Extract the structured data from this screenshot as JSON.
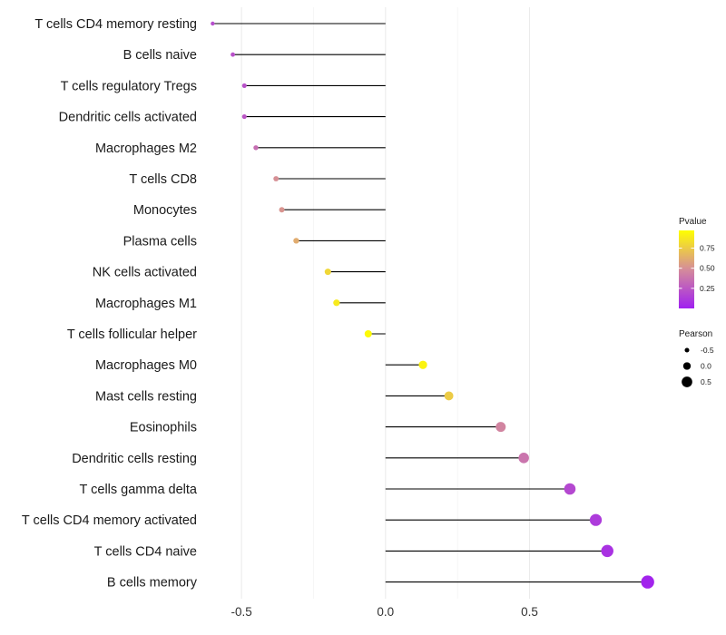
{
  "chart_data": {
    "type": "lollipop",
    "title": "",
    "xlabel": "",
    "ylabel": "",
    "xlim": [
      -0.62,
      0.93
    ],
    "x_ticks": [
      -0.5,
      0.0,
      0.5
    ],
    "x_tick_labels": [
      "-0.5",
      "0.0",
      "0.5"
    ],
    "grid": true,
    "categories": [
      "T cells CD4 memory resting",
      "B cells naive",
      "T cells regulatory  Tregs ",
      "Dendritic cells activated",
      "Macrophages M2",
      "T cells CD8",
      "Monocytes",
      "Plasma cells",
      "NK cells activated",
      "Macrophages M1",
      "T cells follicular helper",
      "Macrophages M0",
      "Mast cells resting",
      "Eosinophils",
      "Dendritic cells resting",
      "T cells gamma delta",
      "T cells CD4 memory activated",
      "T cells CD4 naive",
      "B cells memory"
    ],
    "pearson": [
      -0.6,
      -0.53,
      -0.49,
      -0.49,
      -0.45,
      -0.38,
      -0.36,
      -0.31,
      -0.2,
      -0.17,
      -0.06,
      0.13,
      0.22,
      0.4,
      0.48,
      0.64,
      0.73,
      0.77,
      0.91
    ],
    "pvalue": [
      0.2,
      0.22,
      0.22,
      0.24,
      0.35,
      0.5,
      0.52,
      0.62,
      0.8,
      0.88,
      0.95,
      0.92,
      0.75,
      0.45,
      0.38,
      0.18,
      0.12,
      0.08,
      0.02
    ],
    "legend": {
      "placement": "right",
      "color_title": "Pvalue",
      "color_ticks": [
        0.25,
        0.5,
        0.75
      ],
      "color_tick_labels": [
        "0.25",
        "0.50",
        "0.75"
      ],
      "color_range": [
        0.0,
        0.97
      ],
      "size_title": "Pearson",
      "size_values": [
        -0.5,
        0.0,
        0.5
      ],
      "size_labels": [
        "-0.5",
        "0.0",
        "0.5"
      ]
    },
    "colors": {
      "low": "#a020f0",
      "mid": "#d58c9a",
      "high": "#ffff00",
      "stem": "#000000",
      "grid": "#ebebeb",
      "text": "#1a1a1a"
    }
  }
}
